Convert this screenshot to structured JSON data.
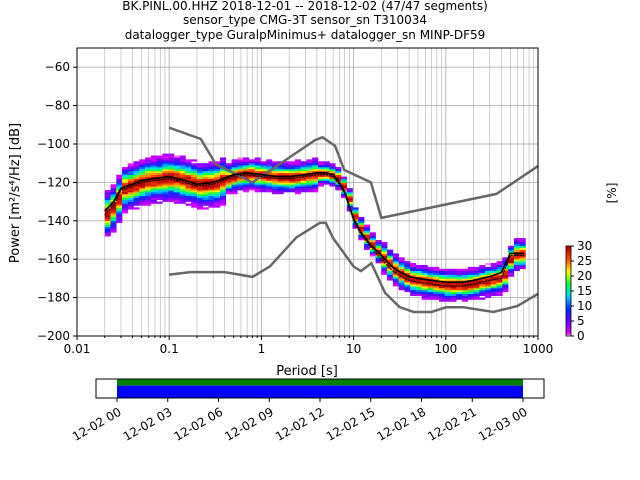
{
  "title_lines": [
    "BK.PINL.00.HHZ   2018-12-01 -- 2018-12-02  (47/47 segments)",
    "sensor_type CMG-3T sensor_sn T310034",
    "datalogger_type GuralpMinimus+ datalogger_sn MINP-DF59"
  ],
  "chart_data": {
    "type": "heatmap",
    "title": "BK.PINL.00.HHZ   2018-12-01 -- 2018-12-02  (47/47 segments)",
    "xlabel": "Period [s]",
    "ylabel": "Power [m²/s⁴/Hz] [dB]",
    "xscale": "log",
    "xlim": [
      0.01,
      1000
    ],
    "ylim": [
      -200,
      -50
    ],
    "grid": true,
    "x_ticks": [
      "0.01",
      "0.1",
      "1",
      "10",
      "100",
      "1000"
    ],
    "y_ticks": [
      "-60",
      "-80",
      "-100",
      "-120",
      "-140",
      "-160",
      "-180",
      "-200"
    ],
    "colorbar": {
      "label": "[%]",
      "range": [
        0,
        30
      ],
      "ticks": [
        "0",
        "5",
        "10",
        "15",
        "20",
        "25",
        "30"
      ]
    },
    "noise_model_high": {
      "x": [
        0.1,
        0.22,
        0.32,
        0.8,
        3.8,
        4.6,
        6.3,
        7.9,
        15.4,
        20,
        354.8,
        1000
      ],
      "y": [
        -91.5,
        -97.4,
        -110.5,
        -120.0,
        -98.0,
        -96.5,
        -101.0,
        -113.5,
        -120.0,
        -138.5,
        -126.0,
        -111.5
      ]
    },
    "noise_model_low": {
      "x": [
        0.1,
        0.17,
        0.4,
        0.8,
        1.24,
        2.4,
        4.3,
        5.0,
        6.0,
        10.0,
        12.0,
        15.6,
        21.9,
        31.6,
        45.0,
        70.0,
        101.0,
        154.0,
        328.0,
        600.0,
        1000.0
      ],
      "y": [
        -168.0,
        -166.7,
        -166.7,
        -169.2,
        -163.7,
        -148.6,
        -141.1,
        -141.1,
        -149.0,
        -163.8,
        -166.2,
        -162.1,
        -177.5,
        -185.0,
        -187.5,
        -187.5,
        -185.0,
        -185.0,
        -187.5,
        -184.4,
        -178.0
      ]
    },
    "mode_curve": {
      "x": [
        0.02,
        0.025,
        0.03,
        0.04,
        0.05,
        0.07,
        0.1,
        0.15,
        0.2,
        0.3,
        0.5,
        0.7,
        1.0,
        1.5,
        2.0,
        3.0,
        4.0,
        5.0,
        6.0,
        7.0,
        8.0,
        10.0,
        12.0,
        15.0,
        20.0,
        25.0,
        30.0,
        40.0,
        50.0,
        70.0,
        100.0,
        150.0,
        200.0,
        300.0,
        400.0,
        500.0,
        700.0
      ],
      "y": [
        -137,
        -132,
        -124,
        -122,
        -120,
        -119,
        -118,
        -120,
        -122,
        -121,
        -117,
        -116,
        -117,
        -118,
        -118,
        -117,
        -116,
        -116,
        -117,
        -121,
        -126,
        -140,
        -147,
        -153,
        -160,
        -165,
        -168,
        -171,
        -172,
        -173,
        -174,
        -174,
        -173,
        -171,
        -170,
        -158,
        -158
      ]
    },
    "mean_curve": {
      "x": [
        0.02,
        0.025,
        0.03,
        0.04,
        0.05,
        0.07,
        0.1,
        0.15,
        0.2,
        0.3,
        0.5,
        0.7,
        1.0,
        1.5,
        2.0,
        3.0,
        4.0,
        5.0,
        6.0,
        7.0,
        8.0,
        10.0,
        12.0,
        15.0,
        20.0,
        25.0,
        30.0,
        40.0,
        50.0,
        70.0,
        100.0,
        150.0,
        200.0,
        300.0,
        400.0,
        500.0,
        700.0
      ],
      "y": [
        -135,
        -130,
        -123,
        -121,
        -119,
        -118,
        -117,
        -119,
        -121,
        -120,
        -116,
        -115,
        -116,
        -117,
        -117,
        -116,
        -115,
        -115,
        -116,
        -120,
        -125,
        -139,
        -146,
        -152,
        -158,
        -163,
        -166,
        -169,
        -170,
        -171,
        -172,
        -172,
        -171,
        -169,
        -167,
        -157,
        -157
      ]
    },
    "timeline": {
      "tick_labels": [
        "12-02 00",
        "12-02 03",
        "12-02 06",
        "12-02 09",
        "12-02 12",
        "12-02 15",
        "12-02 18",
        "12-02 21",
        "12-03 00"
      ],
      "data_colors": [
        "#008000",
        "#0000ff"
      ]
    }
  }
}
